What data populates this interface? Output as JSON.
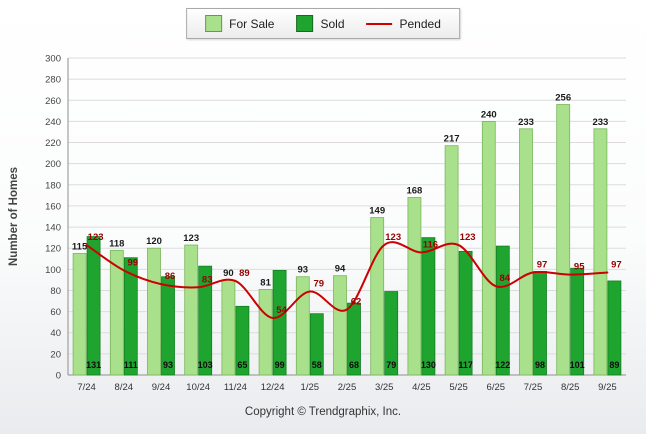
{
  "chart_data": {
    "type": "bar",
    "categories": [
      "7/24",
      "8/24",
      "9/24",
      "10/24",
      "11/24",
      "12/24",
      "1/25",
      "2/25",
      "3/25",
      "4/25",
      "5/25",
      "6/25",
      "7/25",
      "8/25",
      "9/25"
    ],
    "series": [
      {
        "name": "For Sale",
        "kind": "bar",
        "color": "#a9e08b",
        "stroke": "#79b65c",
        "values": [
          115,
          118,
          120,
          123,
          90,
          81,
          93,
          94,
          149,
          168,
          217,
          240,
          233,
          256,
          233
        ]
      },
      {
        "name": "Sold",
        "kind": "bar",
        "color": "#1fa52f",
        "stroke": "#128021",
        "values": [
          131,
          111,
          93,
          103,
          65,
          99,
          58,
          68,
          79,
          130,
          117,
          122,
          98,
          101,
          89
        ]
      },
      {
        "name": "Pended",
        "kind": "line",
        "color": "#cc0000",
        "label_color": "#990000",
        "values": [
          123,
          99,
          86,
          83,
          89,
          54,
          79,
          62,
          123,
          116,
          123,
          84,
          97,
          95,
          97
        ]
      }
    ],
    "title": "",
    "xlabel": "",
    "ylabel": "Number of Homes",
    "ylim": [
      0,
      300
    ],
    "ytick_step": 20,
    "grid": true,
    "legend_position": "top-center",
    "footer": "Copyright © Trendgraphix, Inc."
  }
}
